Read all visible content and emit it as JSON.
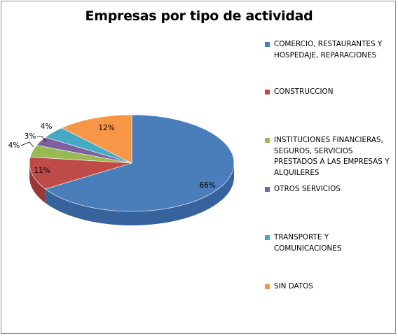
{
  "chart_data": {
    "type": "pie",
    "title": "Empresas por tipo de actividad",
    "categories": [
      "COMERCIO, RESTAURANTES Y HOSPEDAJE, REPARACIONES",
      "CONSTRUCCION",
      "INSTITUCIONES FINANCIERAS, SEGUROS, SERVICIOS PRESTADOS A LAS EMPRESAS Y ALQUILERES",
      "OTROS SERVICIOS",
      "TRANSPORTE Y COMUNICACIONES",
      "SIN DATOS"
    ],
    "values": [
      66,
      11,
      4,
      3,
      4,
      12
    ],
    "labels": [
      "66%",
      "11%",
      "4%",
      "3%",
      "4%",
      "12%"
    ],
    "colors": [
      "#4a7ebb",
      "#be4b48",
      "#98b954",
      "#7d60a0",
      "#46aac5",
      "#f79646"
    ],
    "side_colors": [
      "#36639b",
      "#973a37",
      "#789640",
      "#5f4880",
      "#3487a0",
      "#c9732e"
    ],
    "legend_position": "right",
    "style": "3d"
  }
}
